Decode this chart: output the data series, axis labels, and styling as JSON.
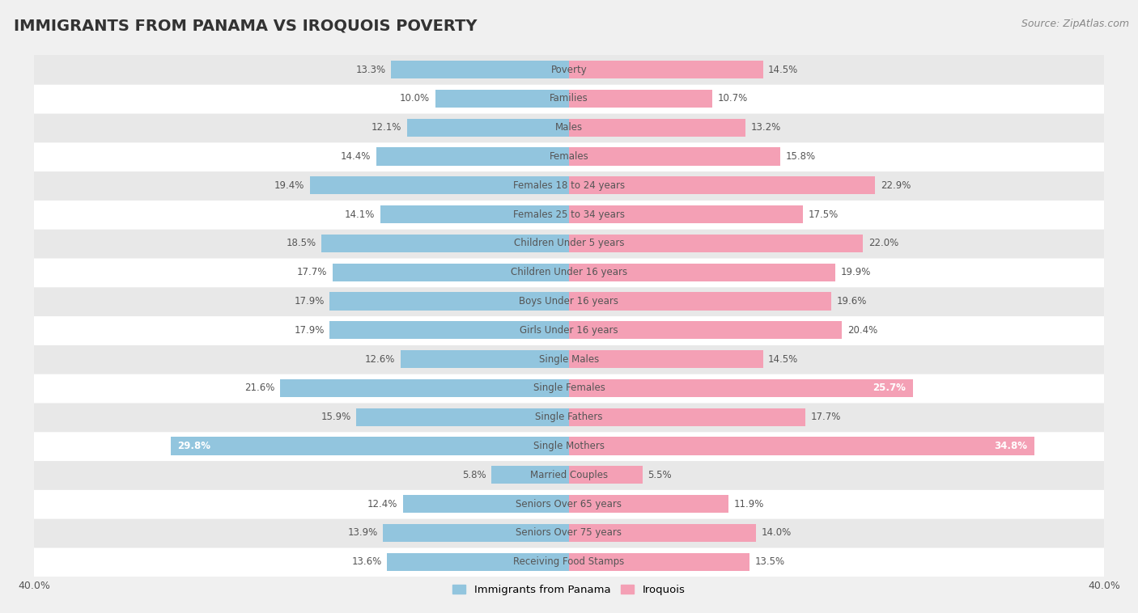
{
  "title": "IMMIGRANTS FROM PANAMA VS IROQUOIS POVERTY",
  "source": "Source: ZipAtlas.com",
  "categories": [
    "Poverty",
    "Families",
    "Males",
    "Females",
    "Females 18 to 24 years",
    "Females 25 to 34 years",
    "Children Under 5 years",
    "Children Under 16 years",
    "Boys Under 16 years",
    "Girls Under 16 years",
    "Single Males",
    "Single Females",
    "Single Fathers",
    "Single Mothers",
    "Married Couples",
    "Seniors Over 65 years",
    "Seniors Over 75 years",
    "Receiving Food Stamps"
  ],
  "left_values": [
    13.3,
    10.0,
    12.1,
    14.4,
    19.4,
    14.1,
    18.5,
    17.7,
    17.9,
    17.9,
    12.6,
    21.6,
    15.9,
    29.8,
    5.8,
    12.4,
    13.9,
    13.6
  ],
  "right_values": [
    14.5,
    10.7,
    13.2,
    15.8,
    22.9,
    17.5,
    22.0,
    19.9,
    19.6,
    20.4,
    14.5,
    25.7,
    17.7,
    34.8,
    5.5,
    11.9,
    14.0,
    13.5
  ],
  "left_color": "#92c5de",
  "right_color": "#f4a0b5",
  "left_label": "Immigrants from Panama",
  "right_label": "Iroquois",
  "xlim": 40.0,
  "bg_color": "#f0f0f0",
  "row_color_light": "#ffffff",
  "row_color_dark": "#e8e8e8",
  "label_color_dark": "#555555",
  "label_color_light": "#ffffff",
  "title_fontsize": 14,
  "source_fontsize": 9,
  "bar_fontsize": 8.5,
  "cat_fontsize": 8.5
}
